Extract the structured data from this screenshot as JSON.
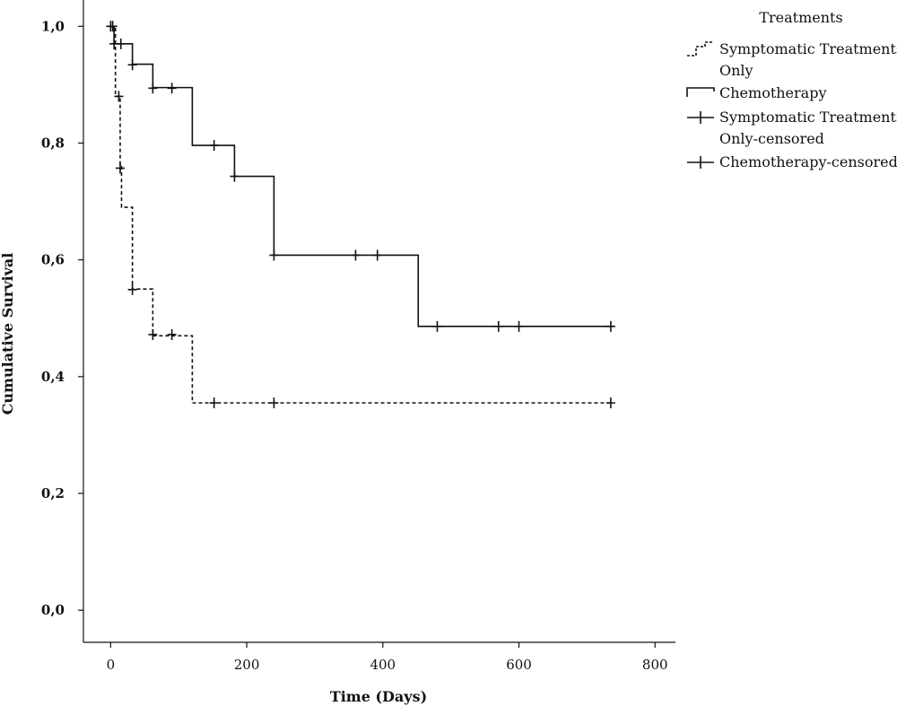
{
  "chart_data": {
    "type": "line",
    "subtype": "kaplan-meier survival curve",
    "xlabel": "Time (Days)",
    "ylabel": "Cumulative Survival",
    "xlim": [
      -40,
      830
    ],
    "ylim": [
      -0.055,
      1.045
    ],
    "xticks": [
      0,
      200,
      400,
      600,
      800
    ],
    "yticks": [
      0.0,
      0.2,
      0.4,
      0.6,
      0.8,
      1.0
    ],
    "ytick_labels": [
      "0,0",
      "0,2",
      "0,4",
      "0,6",
      "0,8",
      "1,0"
    ],
    "grid": false,
    "legend": {
      "title": "Treatments",
      "placement": "top-right",
      "entries": [
        {
          "label_lines": [
            "Symptomatic Treatments",
            "Only"
          ],
          "symbol": "dashed-step"
        },
        {
          "label_lines": [
            "Chemotherapy"
          ],
          "symbol": "solid-step"
        },
        {
          "label_lines": [
            "Symptomatic Treatments",
            "Only-censored"
          ],
          "symbol": "cross"
        },
        {
          "label_lines": [
            "Chemotherapy-censored"
          ],
          "symbol": "cross"
        }
      ]
    },
    "series": [
      {
        "name": "Symptomatic Treatments Only",
        "style": "dashed",
        "steps": [
          [
            0,
            1.0
          ],
          [
            7,
            0.88
          ],
          [
            14,
            0.76
          ],
          [
            16,
            0.69
          ],
          [
            32,
            0.55
          ],
          [
            62,
            0.47
          ],
          [
            120,
            0.355
          ],
          [
            735,
            0.355
          ]
        ],
        "censored": [
          [
            3,
            1.0
          ],
          [
            12,
            0.88
          ],
          [
            14,
            0.757
          ],
          [
            32,
            0.549
          ],
          [
            62,
            0.472
          ],
          [
            90,
            0.472
          ],
          [
            152,
            0.355
          ],
          [
            240,
            0.355
          ],
          [
            735,
            0.355
          ]
        ]
      },
      {
        "name": "Chemotherapy",
        "style": "solid",
        "steps": [
          [
            0,
            1.0
          ],
          [
            5,
            0.97
          ],
          [
            32,
            0.935
          ],
          [
            62,
            0.895
          ],
          [
            120,
            0.796
          ],
          [
            182,
            0.743
          ],
          [
            240,
            0.608
          ],
          [
            452,
            0.486
          ],
          [
            735,
            0.486
          ]
        ],
        "censored": [
          [
            0,
            1.0
          ],
          [
            5,
            0.97
          ],
          [
            15,
            0.97
          ],
          [
            32,
            0.934
          ],
          [
            62,
            0.894
          ],
          [
            90,
            0.894
          ],
          [
            152,
            0.796
          ],
          [
            182,
            0.743
          ],
          [
            240,
            0.608
          ],
          [
            360,
            0.608
          ],
          [
            392,
            0.608
          ],
          [
            480,
            0.486
          ],
          [
            570,
            0.486
          ],
          [
            600,
            0.486
          ],
          [
            735,
            0.486
          ]
        ]
      }
    ]
  }
}
